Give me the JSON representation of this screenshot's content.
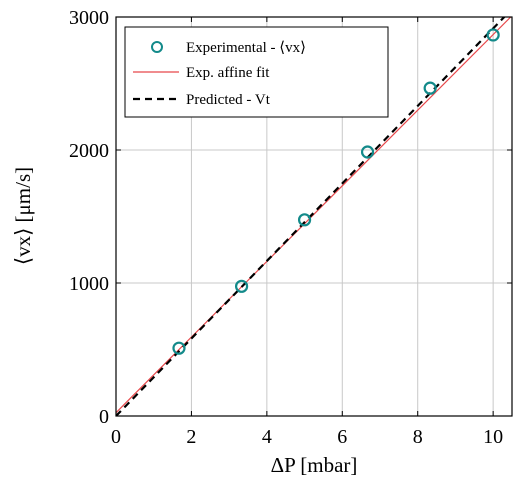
{
  "chart_data": {
    "type": "scatter",
    "xlabel": "ΔP [mbar]",
    "ylabel": "⟨vx⟩ [μm/s]",
    "xlim": [
      0,
      10.5
    ],
    "ylim": [
      0,
      3000
    ],
    "x_ticks": [
      0,
      2,
      4,
      6,
      8,
      10
    ],
    "y_ticks": [
      0,
      1000,
      2000,
      3000
    ],
    "x_tick_labels": [
      "0",
      "2",
      "4",
      "6",
      "8",
      "10"
    ],
    "y_tick_labels": [
      "0",
      "1000",
      "2000",
      "3000"
    ],
    "grid": true,
    "legend_position": "top-left",
    "series": [
      {
        "name": "Experimental - ⟨vx⟩",
        "kind": "markers",
        "marker": "open-circle",
        "color": "#138a8a",
        "x": [
          1.67,
          3.33,
          5.0,
          6.67,
          8.33,
          10.0
        ],
        "y": [
          510,
          975,
          1475,
          1985,
          2465,
          2865
        ]
      },
      {
        "name": "Exp. affine fit",
        "kind": "line",
        "style": "solid",
        "color": "#e8474a",
        "x": [
          0,
          10.5
        ],
        "y": [
          25,
          3010
        ]
      },
      {
        "name": "Predicted - Vt",
        "kind": "line",
        "style": "dashed",
        "color": "#000000",
        "x": [
          0,
          10.5
        ],
        "y": [
          0,
          3060
        ]
      }
    ]
  }
}
